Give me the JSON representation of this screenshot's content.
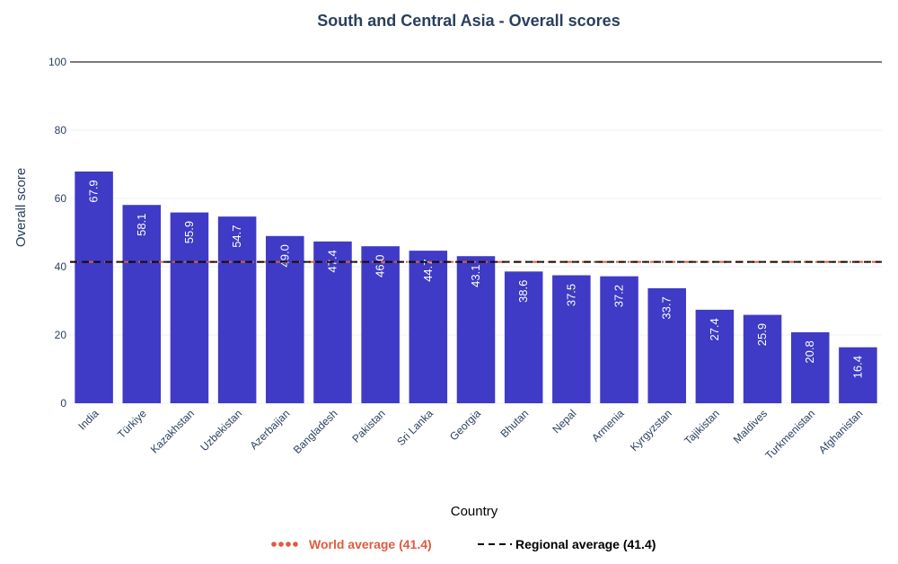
{
  "chart_data": {
    "type": "bar",
    "title": "South and Central Asia - Overall scores",
    "xlabel": "Country",
    "ylabel": "Overall score",
    "ylim": [
      0,
      100
    ],
    "yticks": [
      0,
      20,
      40,
      60,
      80,
      100
    ],
    "grid": true,
    "bar_color": "#3f3bc6",
    "categories": [
      "India",
      "Türkiye",
      "Kazakhstan",
      "Uzbekistan",
      "Azerbaijan",
      "Bangladesh",
      "Pakistan",
      "Sri Lanka",
      "Georgia",
      "Bhutan",
      "Nepal",
      "Armenia",
      "Kyrgyzstan",
      "Tajikistan",
      "Maldives",
      "Turkmenistan",
      "Afghanistan"
    ],
    "values": [
      67.9,
      58.1,
      55.9,
      54.7,
      49.0,
      47.4,
      46.0,
      44.7,
      43.1,
      38.6,
      37.5,
      37.2,
      33.7,
      27.4,
      25.9,
      20.8,
      16.4
    ],
    "value_labels": [
      "67.9",
      "58.1",
      "55.9",
      "54.7",
      "49.0",
      "47.4",
      "46.0",
      "44.7",
      "43.1",
      "38.6",
      "37.5",
      "37.2",
      "33.7",
      "27.4",
      "25.9",
      "20.8",
      "16.4"
    ],
    "reference_lines": [
      {
        "name": "World average (41.4)",
        "value": 41.4,
        "style": "dash-dot",
        "color": "#e05a3f"
      },
      {
        "name": "Regional average (41.4)",
        "value": 41.4,
        "style": "dashed",
        "color": "#000000"
      }
    ],
    "legend_position": "bottom-center"
  }
}
